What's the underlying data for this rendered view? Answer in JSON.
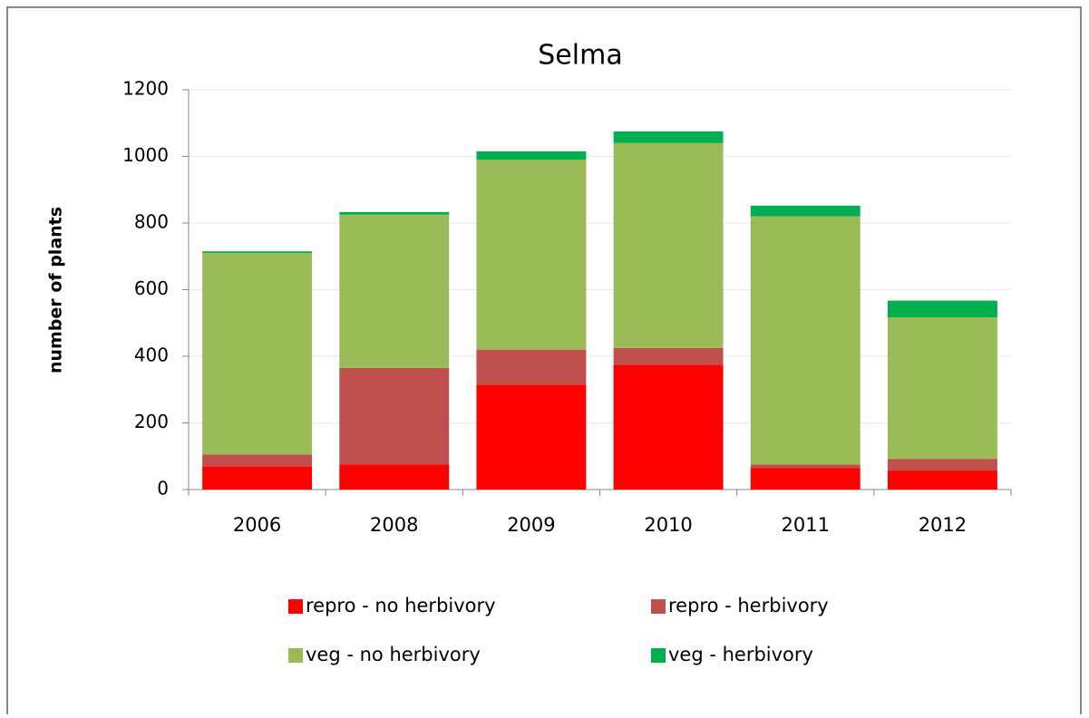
{
  "chart_data": {
    "type": "stacked-bar",
    "title": "Selma",
    "y_label": "number of plants",
    "categories": [
      "2006",
      "2008",
      "2009",
      "2010",
      "2011",
      "2012"
    ],
    "series": [
      {
        "name": "repro - no herbivory",
        "color": "#ff0000",
        "values": [
          70,
          75,
          315,
          375,
          65,
          57
        ]
      },
      {
        "name": "repro - herbivory",
        "color": "#c0504d",
        "values": [
          35,
          290,
          105,
          50,
          10,
          35
        ]
      },
      {
        "name": "veg - no herbivory",
        "color": "#9bbb59",
        "values": [
          605,
          460,
          570,
          615,
          745,
          425
        ]
      },
      {
        "name": "veg - herbivory",
        "color": "#00b050",
        "values": [
          5,
          8,
          25,
          35,
          32,
          50
        ]
      }
    ],
    "ylim": [
      0,
      1200
    ],
    "yticks": [
      0,
      200,
      400,
      600,
      800,
      1000,
      1200
    ],
    "grid": true
  }
}
